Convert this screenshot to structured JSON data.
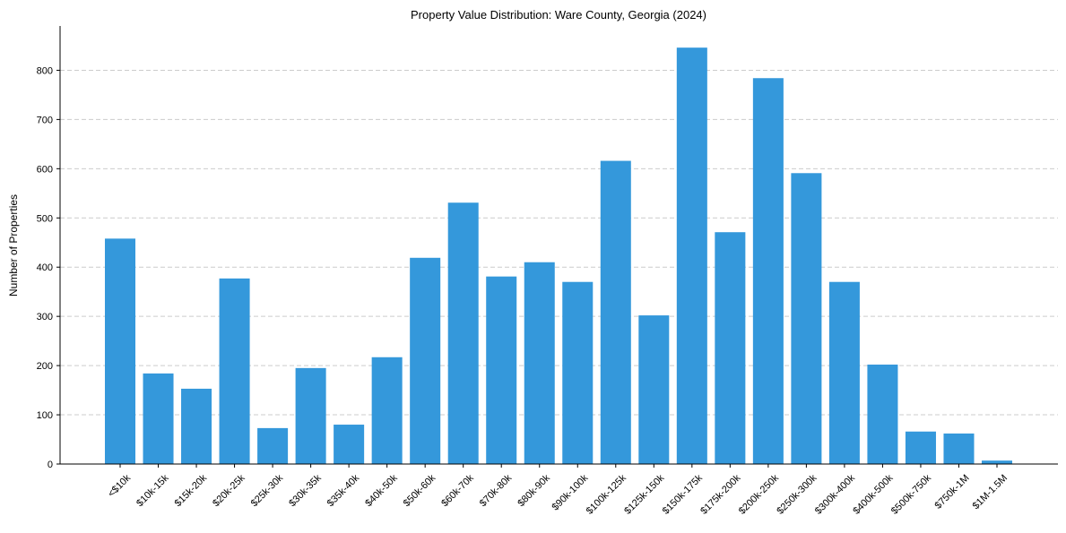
{
  "chart_data": {
    "type": "bar",
    "title": "Property Value Distribution: Ware County, Georgia (2024)",
    "xlabel": "",
    "ylabel": "Number of Properties",
    "ylim": [
      0,
      890
    ],
    "yticks": [
      0,
      100,
      200,
      300,
      400,
      500,
      600,
      700,
      800
    ],
    "grid": "y-dashed",
    "bar_color": "#3498db",
    "categories": [
      "<$10k",
      "$10k-15k",
      "$15k-20k",
      "$20k-25k",
      "$25k-30k",
      "$30k-35k",
      "$35k-40k",
      "$40k-50k",
      "$50k-60k",
      "$60k-70k",
      "$70k-80k",
      "$80k-90k",
      "$90k-100k",
      "$100k-125k",
      "$125k-150k",
      "$150k-175k",
      "$175k-200k",
      "$200k-250k",
      "$250k-300k",
      "$300k-400k",
      "$400k-500k",
      "$500k-750k",
      "$750k-1M",
      "$1M-1.5M"
    ],
    "values": [
      458,
      184,
      153,
      377,
      73,
      195,
      80,
      217,
      419,
      531,
      381,
      410,
      370,
      616,
      302,
      846,
      471,
      784,
      591,
      370,
      202,
      66,
      62,
      7
    ]
  }
}
